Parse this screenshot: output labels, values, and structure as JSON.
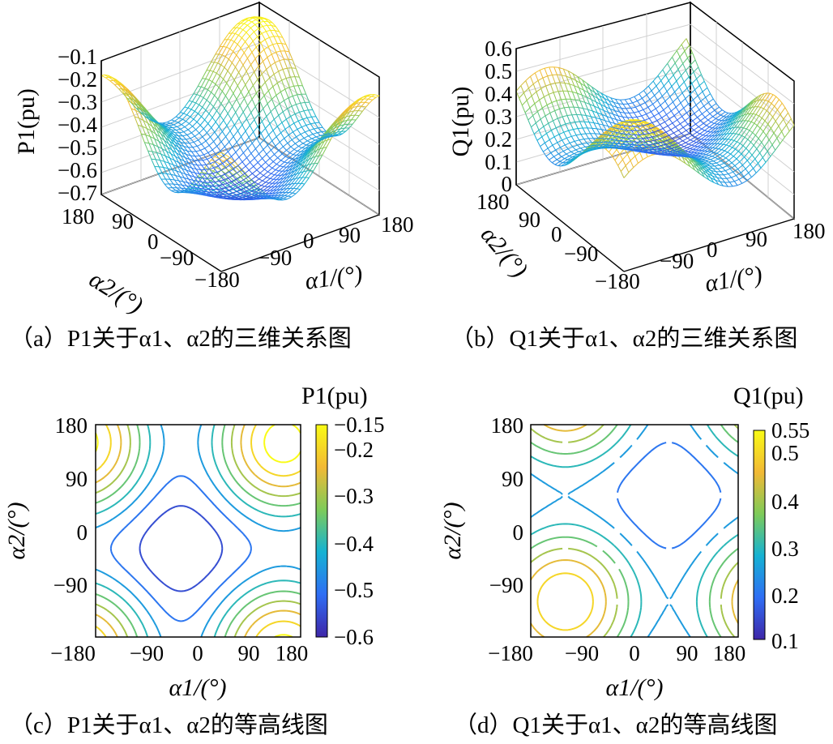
{
  "chart_data": [
    {
      "type": "surface",
      "id": "a",
      "caption": "（a）P1关于α1、α2的三维关系图",
      "zlabel": "P1(pu)",
      "xlabel": "α1/(°)",
      "ylabel": "α2/(°)",
      "x_ticks": [
        "−90",
        "0",
        "90",
        "180"
      ],
      "y_ticks": [
        "180",
        "90",
        "0",
        "−90",
        "−180"
      ],
      "z_ticks": [
        "−0.1",
        "−0.2",
        "−0.3",
        "−0.4",
        "−0.5",
        "−0.6",
        "−0.7"
      ],
      "xlim": [
        -180,
        180
      ],
      "ylim": [
        -180,
        180
      ],
      "zlim": [
        -0.7,
        -0.1
      ],
      "surface": {
        "min": -0.65,
        "max": -0.12,
        "min_at": [
          -30,
          -30
        ],
        "max_at": [
          150,
          150
        ]
      }
    },
    {
      "type": "surface",
      "id": "b",
      "caption": "（b）Q1关于α1、α2的三维关系图",
      "zlabel": "Q1(pu)",
      "xlabel": "α1/(°)",
      "ylabel": "α2/(°)",
      "x_ticks": [
        "−90",
        "0",
        "90",
        "180"
      ],
      "y_ticks": [
        "180",
        "90",
        "0",
        "−90",
        "−180"
      ],
      "z_ticks": [
        "0.6",
        "0.5",
        "0.4",
        "0.3",
        "0.2",
        "0.1",
        "0"
      ],
      "xlim": [
        -180,
        180
      ],
      "ylim": [
        -180,
        180
      ],
      "zlim": [
        0,
        0.6
      ],
      "surface": {
        "min": 0.1,
        "max": 0.55,
        "min_at": [
          60,
          60
        ],
        "max_at": [
          -120,
          -120
        ]
      }
    },
    {
      "type": "contour",
      "id": "c",
      "caption": "（c）P1关于α1、α2的等高线图",
      "colorbar_label": "P1(pu)",
      "xlabel": "α1/(°)",
      "ylabel": "α2/(°)",
      "x_ticks": [
        "−180",
        "−90",
        "0",
        "90",
        "180"
      ],
      "y_ticks": [
        "180",
        "90",
        "0",
        "−90"
      ],
      "colorbar_ticks": [
        "−0.15",
        "−0.2",
        "−0.3",
        "−0.4",
        "−0.5",
        "−0.6"
      ],
      "colorbar_range": [
        -0.6,
        -0.15
      ],
      "levels": [
        -0.6,
        -0.55,
        -0.5,
        -0.45,
        -0.4,
        -0.35,
        -0.3,
        -0.25,
        -0.2,
        -0.15
      ],
      "surface": {
        "min": -0.65,
        "max": -0.12,
        "min_at": [
          -30,
          -30
        ],
        "max_at": [
          150,
          150
        ]
      }
    },
    {
      "type": "contour",
      "id": "d",
      "caption": "（d）Q1关于α1、α2的等高线图",
      "colorbar_label": "Q1(pu)",
      "xlabel": "α1/(°)",
      "ylabel": "α2/(°)",
      "x_ticks": [
        "−180",
        "−90",
        "0",
        "90",
        "180"
      ],
      "y_ticks": [
        "180",
        "90",
        "0",
        "−90"
      ],
      "colorbar_ticks": [
        "0.55",
        "0.5",
        "0.4",
        "0.3",
        "0.2",
        "0.1"
      ],
      "colorbar_range": [
        0.1,
        0.55
      ],
      "levels": [
        0.1,
        0.15,
        0.2,
        0.25,
        0.3,
        0.35,
        0.4,
        0.45,
        0.5,
        0.55
      ],
      "surface": {
        "min": 0.1,
        "max": 0.55,
        "min_at": [
          60,
          60
        ],
        "max_at": [
          -120,
          -120
        ]
      }
    }
  ]
}
